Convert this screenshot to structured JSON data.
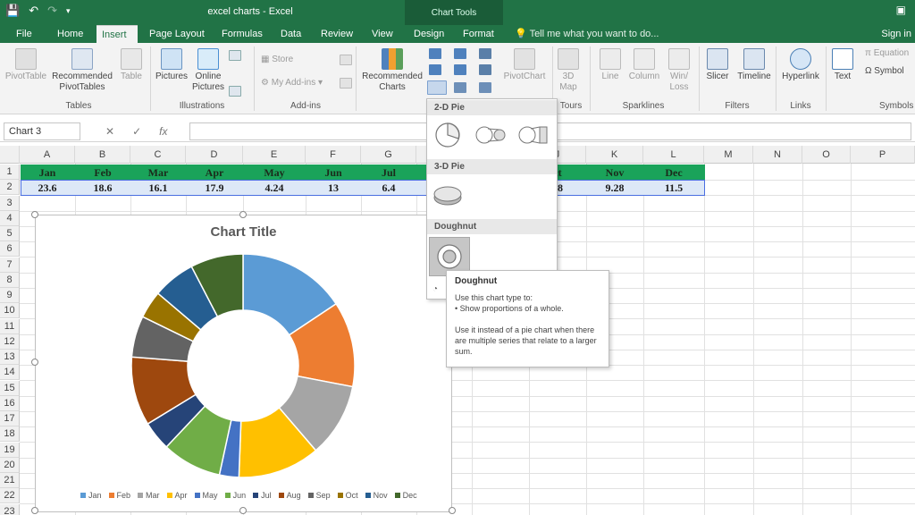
{
  "window": {
    "title": "excel charts - Excel",
    "context_tab_group": "Chart Tools"
  },
  "tabs": [
    {
      "label": "File"
    },
    {
      "label": "Home"
    },
    {
      "label": "Insert"
    },
    {
      "label": "Page Layout"
    },
    {
      "label": "Formulas"
    },
    {
      "label": "Data"
    },
    {
      "label": "Review"
    },
    {
      "label": "View"
    },
    {
      "label": "Design"
    },
    {
      "label": "Format"
    }
  ],
  "tell_me": "Tell me what you want to do...",
  "signin": "Sign in",
  "ribbon": {
    "pivottable": "PivotTable",
    "recommended_pivot": "Recommended PivotTables",
    "table": "Table",
    "pictures": "Pictures",
    "online_pictures": "Online Pictures",
    "store": "Store",
    "my_addins": "My Add-ins",
    "recommended_charts": "Recommended Charts",
    "pivotchart": "PivotChart",
    "map3d": "3D Map",
    "line": "Line",
    "column": "Column",
    "winloss": "Win/ Loss",
    "slicer": "Slicer",
    "timeline": "Timeline",
    "hyperlink": "Hyperlink",
    "text": "Text",
    "equation": "Equation",
    "symbol": "Symbol",
    "groups": {
      "tables": "Tables",
      "illustrations": "Illustrations",
      "addins": "Add-ins",
      "tours": "Tours",
      "sparklines": "Sparklines",
      "filters": "Filters",
      "links": "Links",
      "symbols": "Symbols"
    }
  },
  "namebox": "Chart 3",
  "columns": [
    "A",
    "B",
    "C",
    "D",
    "E",
    "F",
    "G",
    "",
    "",
    "J",
    "K",
    "L",
    "M",
    "N",
    "O",
    "P"
  ],
  "rows": [
    "1",
    "2",
    "3",
    "4",
    "5",
    "6",
    "7",
    "8",
    "9",
    "10",
    "11",
    "12",
    "13",
    "14",
    "15",
    "16",
    "17",
    "18",
    "19",
    "20",
    "21",
    "22",
    "23"
  ],
  "sheet": {
    "headers": [
      "Jan",
      "Feb",
      "Mar",
      "Apr",
      "May",
      "Jun",
      "Jul",
      "ct",
      "Nov",
      "Dec"
    ],
    "values": [
      "23.6",
      "18.6",
      "16.1",
      "17.9",
      "4.24",
      "13",
      "6.4",
      "88",
      "9.28",
      "11.5"
    ]
  },
  "chart_data": {
    "type": "doughnut",
    "title": "Chart Title",
    "categories": [
      "Jan",
      "Feb",
      "Mar",
      "Apr",
      "May",
      "Jun",
      "Jul",
      "Aug",
      "Sep",
      "Oct",
      "Nov",
      "Dec"
    ],
    "values": [
      23.6,
      18.6,
      16.1,
      17.9,
      4.24,
      13,
      6.4,
      15,
      9,
      6,
      9.28,
      11.5
    ],
    "colors": [
      "#5b9bd5",
      "#ed7d31",
      "#a5a5a5",
      "#ffc000",
      "#4472c4",
      "#70ad47",
      "#264478",
      "#9e480e",
      "#636363",
      "#997300",
      "#255e91",
      "#43682b"
    ],
    "legend": "bottom"
  },
  "dropdown": {
    "pie2d": "2-D Pie",
    "pie3d": "3-D Pie",
    "doughnut": "Doughnut"
  },
  "tooltip": {
    "title": "Doughnut",
    "line1": "Use this chart type to:",
    "line2": "• Show proportions of a whole.",
    "line3": "Use it instead of a pie chart when there are multiple series that relate to a larger sum."
  }
}
